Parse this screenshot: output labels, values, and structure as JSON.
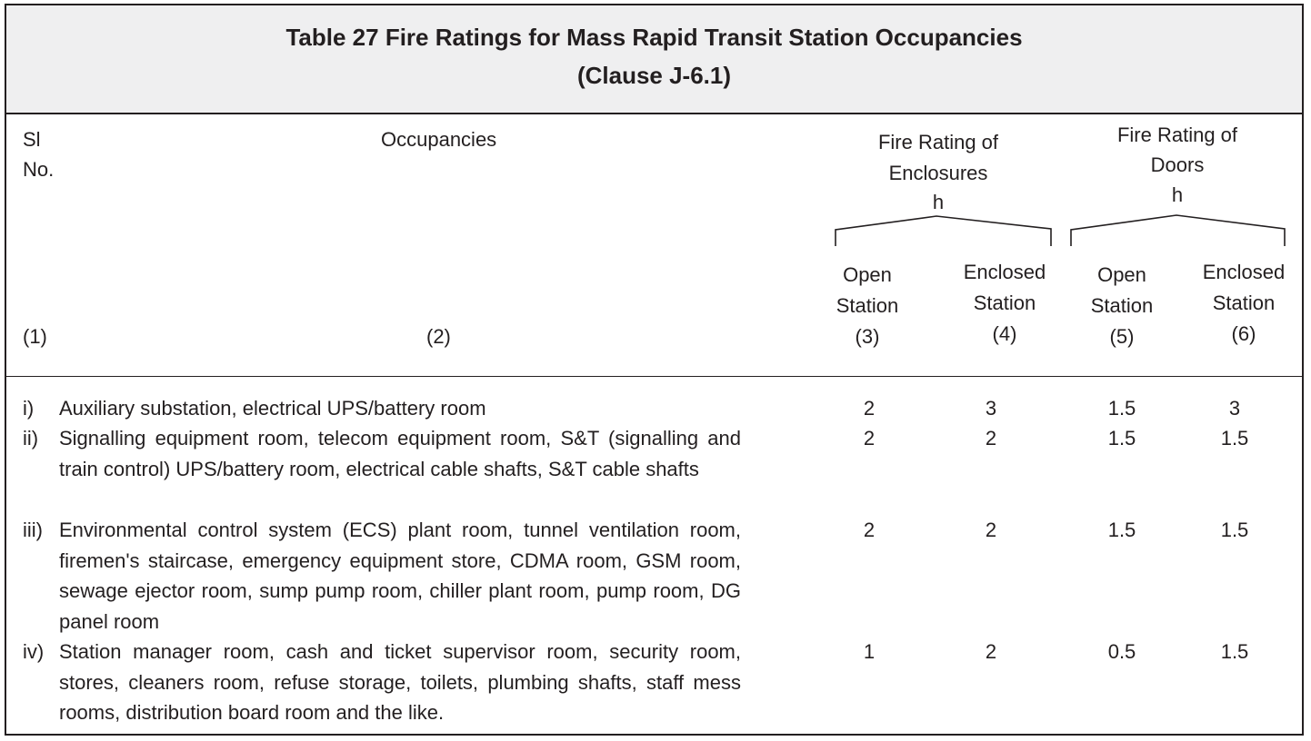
{
  "title": {
    "line1": "Table 27 Fire Ratings for Mass Rapid Transit Station Occupancies",
    "line2": "(Clause J-6.1)"
  },
  "header": {
    "sl": "Sl",
    "no": "No.",
    "occupancies": "Occupancies",
    "enclosures_group": [
      "Fire Rating of",
      "Enclosures",
      "h"
    ],
    "doors_group": [
      "Fire Rating of",
      "Doors",
      "h"
    ],
    "col3": [
      "Open",
      "Station",
      "(3)"
    ],
    "col4": [
      "Enclosed",
      "Station",
      "(4)"
    ],
    "col5": [
      "Open",
      "Station",
      "(5)"
    ],
    "col6": [
      "Enclosed",
      "Station",
      "(6)"
    ],
    "col1_num": "(1)",
    "col2_num": "(2)"
  },
  "rows": [
    {
      "no": "i)",
      "text": "Auxiliary substation, electrical UPS/battery room",
      "values": [
        "2",
        "3",
        "1.5",
        "3"
      ]
    },
    {
      "no": "ii)",
      "text": "Signalling equipment room, telecom equipment room, S&T (signalling and train control) UPS/battery room, electrical cable shafts, S&T cable shafts",
      "values": [
        "2",
        "2",
        "1.5",
        "1.5"
      ]
    },
    {
      "no": "iii)",
      "text": "Environmental control system (ECS) plant room, tunnel ventilation room, firemen's staircase, emergency equipment store, CDMA room, GSM room,  sewage ejector room, sump pump room, chiller plant room, pump room, DG panel room",
      "values": [
        "2",
        "2",
        "1.5",
        "1.5"
      ]
    },
    {
      "no": "iv)",
      "text": "Station manager room, cash and ticket supervisor room, security room, stores, cleaners room, refuse storage, toilets, plumbing shafts, staff mess rooms, distribution board room and the like.",
      "values": [
        "1",
        "2",
        "0.5",
        "1.5"
      ]
    }
  ]
}
